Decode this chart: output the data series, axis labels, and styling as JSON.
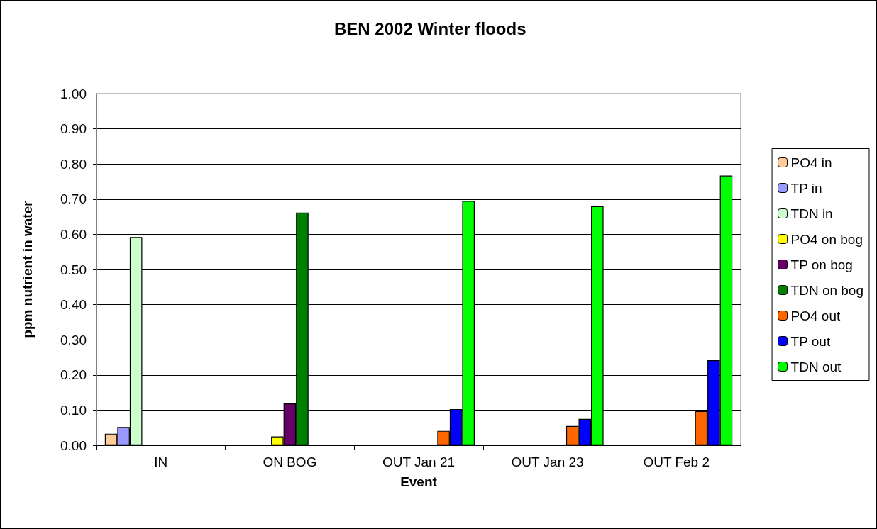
{
  "chart_data": {
    "type": "bar",
    "title": "BEN 2002 Winter floods",
    "xlabel": "Event",
    "ylabel": "ppm nutrient in water",
    "categories": [
      "IN",
      "ON BOG",
      "OUT Jan 21",
      "OUT Jan 23",
      "OUT Feb 2"
    ],
    "series": [
      {
        "name": "PO4 in",
        "color": "#ffcc99",
        "values": [
          0.033,
          null,
          null,
          null,
          null
        ]
      },
      {
        "name": "TP in",
        "color": "#9999ff",
        "values": [
          0.052,
          null,
          null,
          null,
          null
        ]
      },
      {
        "name": "TDN in",
        "color": "#ccffcc",
        "values": [
          0.592,
          null,
          null,
          null,
          null
        ]
      },
      {
        "name": "PO4 on bog",
        "color": "#ffff00",
        "values": [
          null,
          0.025,
          null,
          null,
          null
        ]
      },
      {
        "name": "TP on bog",
        "color": "#660066",
        "values": [
          null,
          0.119,
          null,
          null,
          null
        ]
      },
      {
        "name": "TDN on bog",
        "color": "#008000",
        "values": [
          null,
          0.662,
          null,
          null,
          null
        ]
      },
      {
        "name": "PO4 out",
        "color": "#ff6600",
        "values": [
          null,
          null,
          0.041,
          0.055,
          0.097
        ]
      },
      {
        "name": "TP out",
        "color": "#0000ff",
        "values": [
          null,
          null,
          0.103,
          0.075,
          0.242
        ]
      },
      {
        "name": "TDN out",
        "color": "#00ff00",
        "values": [
          null,
          null,
          0.695,
          0.68,
          0.767
        ]
      }
    ],
    "ylim": [
      0,
      1
    ],
    "yticks": [
      {
        "value": 0,
        "label": "0.00"
      },
      {
        "value": 0.1,
        "label": "0.10"
      },
      {
        "value": 0.2,
        "label": "0.20"
      },
      {
        "value": 0.3,
        "label": "0.30"
      },
      {
        "value": 0.4,
        "label": "0.40"
      },
      {
        "value": 0.5,
        "label": "0.50"
      },
      {
        "value": 0.6,
        "label": "0.60"
      },
      {
        "value": 0.7,
        "label": "0.70"
      },
      {
        "value": 0.8,
        "label": "0.80"
      },
      {
        "value": 0.9,
        "label": "0.90"
      },
      {
        "value": 1,
        "label": "1.00"
      }
    ],
    "grid": "y",
    "legend": "right"
  }
}
